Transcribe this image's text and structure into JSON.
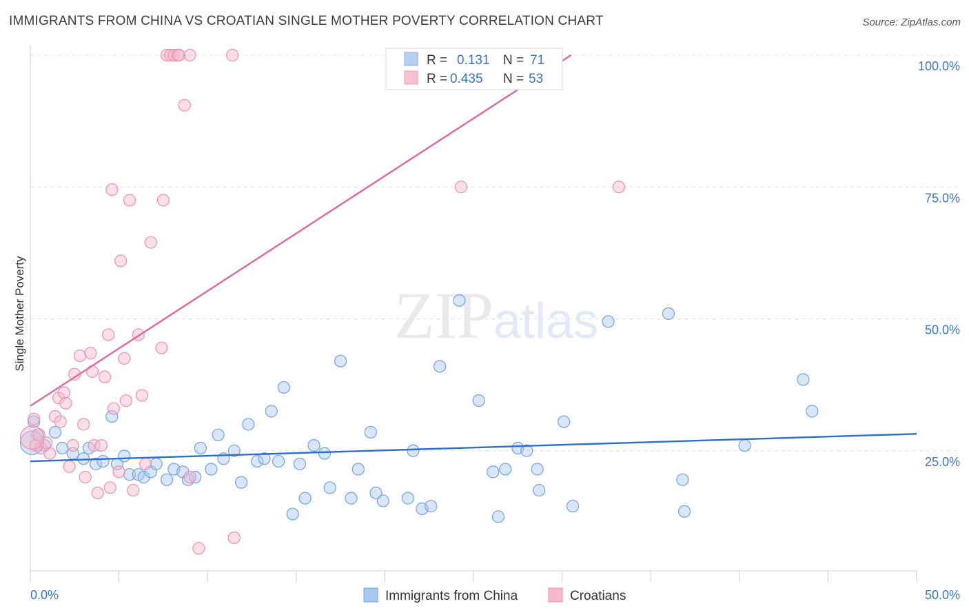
{
  "chart_data": {
    "type": "scatter",
    "title": "IMMIGRANTS FROM CHINA VS CROATIAN SINGLE MOTHER POVERTY CORRELATION CHART",
    "source": "Source: ZipAtlas.com",
    "watermark": "ZIPatlas",
    "xlabel": "",
    "ylabel": "Single Mother Poverty",
    "xlim": [
      0,
      50
    ],
    "ylim": [
      0,
      102
    ],
    "x_tick_labels": [
      "0.0%",
      "50.0%"
    ],
    "y_ticks": [
      25,
      50,
      75,
      100
    ],
    "y_tick_labels": [
      "25.0%",
      "50.0%",
      "75.0%",
      "100.0%"
    ],
    "grid": true,
    "legend_position": "top-center",
    "correlation_legend": [
      {
        "r_label": "R =",
        "r_value": "0.131",
        "n_label": "N =",
        "n_value": "71",
        "color": "#6fa3e0"
      },
      {
        "r_label": "R =",
        "r_value": "0.435",
        "n_label": "N =",
        "n_value": "53",
        "color": "#ee8fae"
      }
    ],
    "series": [
      {
        "name": "Immigrants from China",
        "color": "#6fa3e0",
        "fill": "#a9c8f0",
        "trend": {
          "x": [
            0,
            50
          ],
          "y": [
            23.0,
            28.2
          ]
        },
        "points": [
          [
            0.2,
            30.5
          ],
          [
            0.4,
            28.0
          ],
          [
            0.8,
            26.0
          ],
          [
            1.4,
            28.5
          ],
          [
            1.8,
            25.5
          ],
          [
            2.4,
            24.5
          ],
          [
            3.0,
            23.5
          ],
          [
            3.3,
            25.5
          ],
          [
            3.7,
            22.5
          ],
          [
            4.1,
            23.0
          ],
          [
            4.6,
            31.5
          ],
          [
            4.9,
            22.5
          ],
          [
            5.3,
            24.0
          ],
          [
            5.6,
            20.5
          ],
          [
            6.1,
            20.5
          ],
          [
            6.4,
            20.0
          ],
          [
            6.8,
            21.0
          ],
          [
            7.1,
            22.5
          ],
          [
            7.7,
            19.5
          ],
          [
            8.1,
            21.5
          ],
          [
            8.6,
            21.0
          ],
          [
            8.9,
            19.5
          ],
          [
            9.3,
            20.0
          ],
          [
            9.6,
            25.5
          ],
          [
            10.2,
            21.5
          ],
          [
            10.6,
            28.0
          ],
          [
            10.9,
            23.5
          ],
          [
            11.5,
            25.0
          ],
          [
            11.9,
            19.0
          ],
          [
            12.3,
            30.0
          ],
          [
            12.8,
            23.0
          ],
          [
            13.2,
            23.5
          ],
          [
            13.6,
            32.5
          ],
          [
            14.0,
            23.0
          ],
          [
            14.3,
            37.0
          ],
          [
            14.8,
            13.0
          ],
          [
            15.2,
            22.5
          ],
          [
            15.5,
            16.0
          ],
          [
            16.0,
            26.0
          ],
          [
            16.6,
            24.5
          ],
          [
            16.9,
            18.0
          ],
          [
            17.5,
            42.0
          ],
          [
            18.1,
            16.0
          ],
          [
            18.5,
            21.5
          ],
          [
            19.2,
            28.5
          ],
          [
            19.5,
            17.0
          ],
          [
            19.9,
            15.5
          ],
          [
            21.3,
            16.0
          ],
          [
            21.6,
            25.0
          ],
          [
            22.1,
            14.0
          ],
          [
            22.6,
            14.5
          ],
          [
            23.1,
            41.0
          ],
          [
            24.2,
            53.5
          ],
          [
            25.3,
            34.5
          ],
          [
            26.1,
            21.0
          ],
          [
            26.4,
            12.5
          ],
          [
            26.8,
            21.5
          ],
          [
            27.5,
            25.5
          ],
          [
            28.0,
            25.0
          ],
          [
            28.6,
            21.5
          ],
          [
            28.7,
            17.5
          ],
          [
            30.1,
            30.5
          ],
          [
            30.6,
            14.5
          ],
          [
            32.6,
            49.5
          ],
          [
            36.0,
            51.0
          ],
          [
            36.8,
            19.5
          ],
          [
            36.9,
            13.5
          ],
          [
            40.3,
            26.0
          ],
          [
            44.1,
            32.5
          ],
          [
            43.6,
            38.5
          ],
          [
            0.1,
            26.5
          ]
        ]
      },
      {
        "name": "Croatians",
        "color": "#ee8fae",
        "fill": "#f5b8cb",
        "trend": {
          "x": [
            0,
            30.5
          ],
          "y": [
            33.5,
            100
          ]
        },
        "points": [
          [
            0.2,
            31.0
          ],
          [
            0.3,
            26.0
          ],
          [
            0.5,
            28.0
          ],
          [
            0.6,
            25.5
          ],
          [
            0.9,
            26.5
          ],
          [
            1.1,
            24.5
          ],
          [
            1.4,
            31.5
          ],
          [
            1.6,
            35.0
          ],
          [
            1.7,
            30.5
          ],
          [
            1.9,
            36.0
          ],
          [
            2.0,
            34.0
          ],
          [
            2.2,
            22.0
          ],
          [
            2.4,
            26.0
          ],
          [
            2.5,
            39.5
          ],
          [
            2.8,
            43.0
          ],
          [
            3.0,
            30.0
          ],
          [
            3.1,
            20.0
          ],
          [
            3.4,
            43.5
          ],
          [
            3.5,
            40.0
          ],
          [
            3.6,
            26.0
          ],
          [
            3.8,
            17.0
          ],
          [
            4.0,
            26.0
          ],
          [
            4.2,
            39.0
          ],
          [
            4.4,
            47.0
          ],
          [
            4.5,
            18.0
          ],
          [
            4.6,
            74.5
          ],
          [
            4.7,
            33.0
          ],
          [
            5.0,
            21.0
          ],
          [
            5.1,
            61.0
          ],
          [
            5.3,
            42.5
          ],
          [
            5.4,
            34.5
          ],
          [
            5.6,
            72.5
          ],
          [
            5.8,
            17.5
          ],
          [
            6.1,
            47.0
          ],
          [
            6.3,
            35.5
          ],
          [
            6.5,
            22.5
          ],
          [
            6.8,
            64.5
          ],
          [
            7.4,
            44.5
          ],
          [
            7.5,
            72.5
          ],
          [
            7.7,
            100
          ],
          [
            7.9,
            100
          ],
          [
            8.1,
            100
          ],
          [
            8.3,
            100
          ],
          [
            8.4,
            100
          ],
          [
            8.7,
            90.5
          ],
          [
            9.0,
            20.0
          ],
          [
            9.0,
            100
          ],
          [
            9.5,
            6.5
          ],
          [
            11.4,
            100
          ],
          [
            11.5,
            8.5
          ],
          [
            24.3,
            75.0
          ],
          [
            33.2,
            75.0
          ],
          [
            0.1,
            27.5
          ]
        ]
      }
    ]
  }
}
